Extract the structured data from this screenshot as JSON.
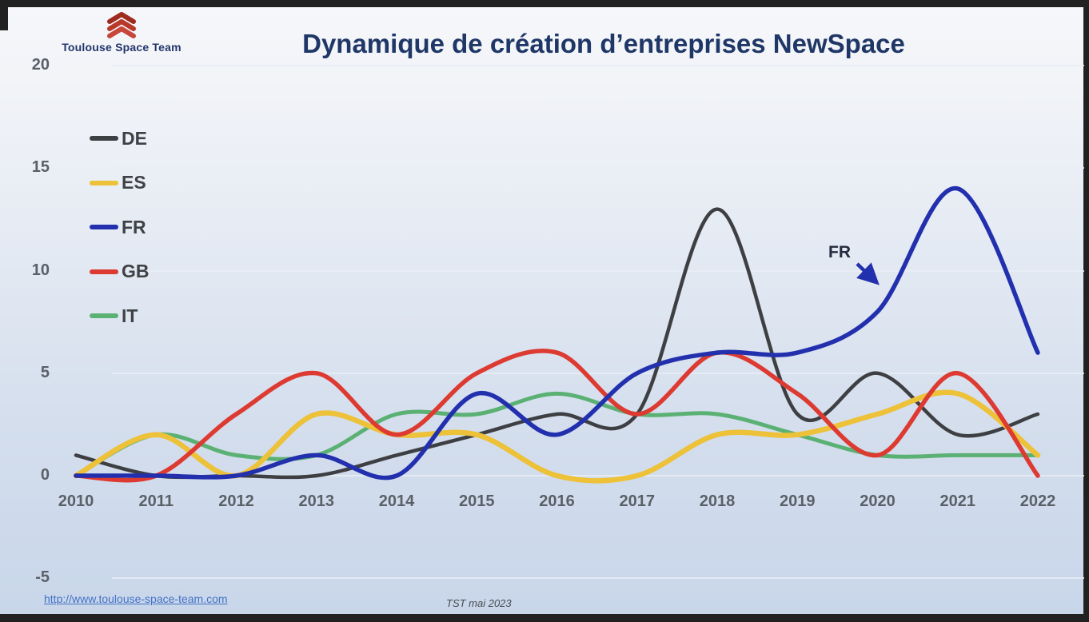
{
  "logo": {
    "text": "Toulouse Space Team",
    "icon": "chevrons-up-icon",
    "icon_color": "#b8392a"
  },
  "title": {
    "text": "Dynamique de création d’entreprises NewSpace",
    "color": "#1f3766"
  },
  "annotation": {
    "label": "FR",
    "arrow_color": "#2330ae"
  },
  "footer": {
    "link": "http://www.toulouse-space-team.com",
    "note": "TST mai 2023"
  },
  "chart_data": {
    "type": "line",
    "title": "Dynamique de création d’entreprises NewSpace",
    "xlabel": "",
    "ylabel": "",
    "x": [
      2010,
      2011,
      2012,
      2013,
      2014,
      2015,
      2016,
      2017,
      2018,
      2019,
      2020,
      2021,
      2022
    ],
    "series": [
      {
        "name": "DE",
        "color": "#3d3f42",
        "values": [
          1,
          0,
          0,
          0,
          1,
          2,
          3,
          3,
          13,
          3,
          5,
          2,
          3
        ]
      },
      {
        "name": "ES",
        "color": "#edc138",
        "values": [
          0,
          2,
          0,
          3,
          2,
          2,
          0,
          0,
          2,
          2,
          3,
          4,
          1
        ]
      },
      {
        "name": "FR",
        "color": "#2330ae",
        "values": [
          0,
          0,
          0,
          1,
          0,
          4,
          2,
          5,
          6,
          6,
          8,
          14,
          6
        ]
      },
      {
        "name": "GB",
        "color": "#dd3a31",
        "values": [
          0,
          0,
          3,
          5,
          2,
          5,
          6,
          3,
          6,
          4,
          1,
          5,
          0
        ]
      },
      {
        "name": "IT",
        "color": "#5bb173",
        "values": [
          0,
          2,
          1,
          1,
          3,
          3,
          4,
          3,
          3,
          2,
          1,
          1,
          1
        ]
      }
    ],
    "y_ticks": [
      20,
      15,
      10,
      5,
      0,
      -5
    ],
    "ylim": [
      -5,
      20
    ],
    "grid": true,
    "smoothing": "spline",
    "legend_position": "upper-left",
    "draw_order": [
      "DE",
      "IT",
      "ES",
      "GB",
      "FR"
    ]
  }
}
